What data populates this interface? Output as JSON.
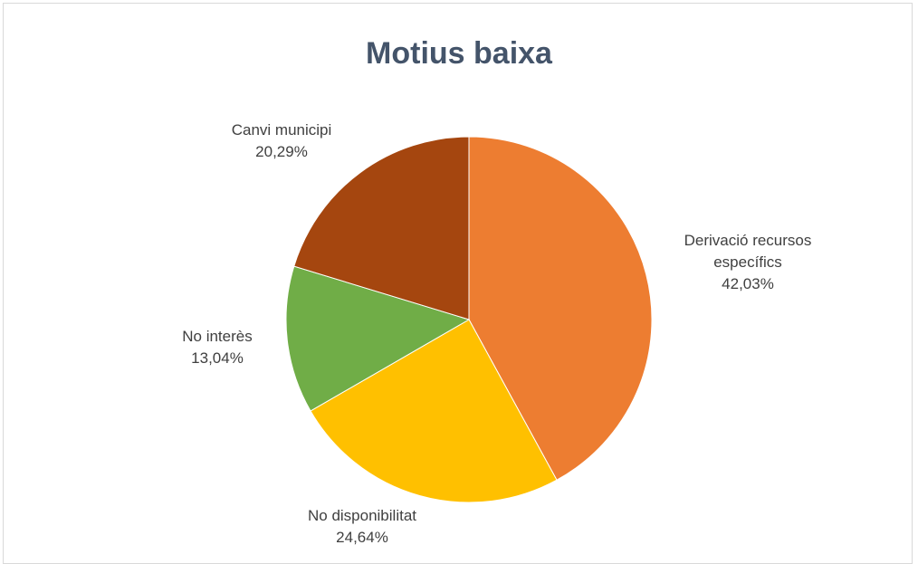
{
  "chart_data": {
    "type": "pie",
    "title": "Motius baixa",
    "categories": [
      "Derivació recursos específics",
      "No disponibilitat",
      "No interès",
      "Canvi municipi"
    ],
    "values": [
      42.03,
      24.64,
      13.04,
      20.29
    ],
    "value_labels": [
      "42,03%",
      "24,64%",
      "13,04%",
      "20,29%"
    ],
    "colors": [
      "#ed7d31",
      "#ffc000",
      "#70ad47",
      "#a5460f"
    ]
  }
}
